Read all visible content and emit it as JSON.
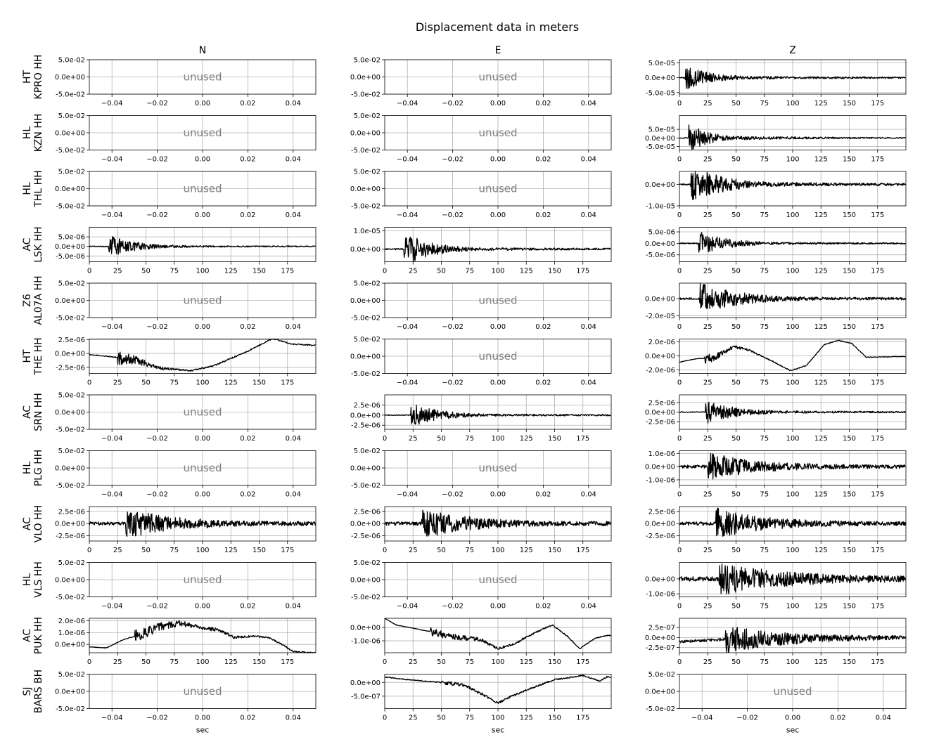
{
  "figure": {
    "title": "Displacement data in meters",
    "colors": {
      "trace": "#000000",
      "grid": "#b0b0b0",
      "unused_text": "#808080"
    }
  },
  "chart_data": {
    "type": "line",
    "title": "Displacement data in meters",
    "columns": [
      "N",
      "E",
      "Z"
    ],
    "xlabel": "sec",
    "unused_text": "unused",
    "grid": true,
    "rows": [
      {
        "label_line1": "HT",
        "label_line2": "KPRO HH",
        "panels": [
          {
            "unused": true
          },
          {
            "unused": true
          },
          {
            "unused": false,
            "onset": 5,
            "decay": 0.045,
            "noise": 0.05,
            "amp": 4e-05,
            "tail": 0.6,
            "ylim": [
              -5.5e-05,
              6e-05
            ],
            "yticks": [
              5e-05,
              0,
              -5e-05
            ],
            "yticklabels": [
              "5.0e-05",
              "0.0e+00",
              "-5.0e-05"
            ]
          }
        ]
      },
      {
        "label_line1": "HL",
        "label_line2": "KZN HH",
        "panels": [
          {
            "unused": true
          },
          {
            "unused": true
          },
          {
            "unused": false,
            "onset": 8,
            "decay": 0.06,
            "noise": 0.03,
            "amp": 9e-05,
            "tail": 0.7,
            "ylim": [
              -7e-05,
              0.00013
            ],
            "yticks": [
              5e-05,
              0,
              -5e-05
            ],
            "yticklabels": [
              "5.0e-05",
              "0.0e+00",
              "-5.0e-05"
            ]
          }
        ]
      },
      {
        "label_line1": "HL",
        "label_line2": "THL HH",
        "panels": [
          {
            "unused": true
          },
          {
            "unused": true
          },
          {
            "unused": false,
            "onset": 10,
            "decay": 0.035,
            "noise": 0.03,
            "amp": 9e-06,
            "tail": 0.6,
            "ylim": [
              -1e-05,
              6e-06
            ],
            "yticks": [
              0,
              -1e-05
            ],
            "yticklabels": [
              "0.0e+00",
              "-1.0e-05"
            ]
          }
        ]
      },
      {
        "label_line1": "AC",
        "label_line2": "LSK HH",
        "panels": [
          {
            "unused": false,
            "onset": 17,
            "decay": 0.045,
            "noise": 0.04,
            "amp": 6e-06,
            "tail": 0.35,
            "ylim": [
              -8e-06,
              1e-05
            ],
            "yticks": [
              5e-06,
              0,
              -5e-06
            ],
            "yticklabels": [
              "5.0e-06",
              "0.0e+00",
              "-5.0e-06"
            ]
          },
          {
            "unused": false,
            "onset": 17,
            "decay": 0.045,
            "noise": 0.04,
            "amp": 1e-05,
            "tail": 0.35,
            "ylim": [
              -7e-06,
              1.2e-05
            ],
            "yticks": [
              1e-05,
              0
            ],
            "yticklabels": [
              "1.0e-05",
              "0.0e+00"
            ]
          },
          {
            "unused": false,
            "onset": 17,
            "decay": 0.045,
            "noise": 0.04,
            "amp": 6e-06,
            "tail": 0.35,
            "ylim": [
              -8e-06,
              7e-06
            ],
            "yticks": [
              5e-06,
              0,
              -5e-06
            ],
            "yticklabels": [
              "5.0e-06",
              "0.0e+00",
              "-5.0e-06"
            ]
          }
        ]
      },
      {
        "label_line1": "Z6",
        "label_line2": "AL07A HH",
        "panels": [
          {
            "unused": true
          },
          {
            "unused": true
          },
          {
            "unused": false,
            "onset": 18,
            "decay": 0.03,
            "noise": 0.06,
            "amp": 1.8e-05,
            "tail": 0.3,
            "ylim": [
              -2.2e-05,
              1.8e-05
            ],
            "yticks": [
              0,
              -2e-05
            ],
            "yticklabels": [
              "0.0e+00",
              "-2.0e-05"
            ]
          }
        ]
      },
      {
        "label_line1": "HT",
        "label_line2": "THE HH",
        "panels": [
          {
            "unused": false,
            "onset": 25,
            "decay": 0.05,
            "noise": 0.05,
            "amp": 1.5e-06,
            "tail": 0.4,
            "drift": [
              [
                0,
                -2e-07
              ],
              [
                20,
                -6e-07
              ],
              [
                40,
                -1.1e-06
              ],
              [
                60,
                -2.6e-06
              ],
              [
                90,
                -3.1e-06
              ],
              [
                110,
                -2.2e-06
              ],
              [
                140,
                4e-07
              ],
              [
                162,
                2.7e-06
              ],
              [
                178,
                1.7e-06
              ],
              [
                196,
                1.5e-06
              ]
            ],
            "ylim": [
              -3.6e-06,
              2.6e-06
            ],
            "yticks": [
              2.5e-06,
              0,
              -2.5e-06
            ],
            "yticklabels": [
              "2.5e-06",
              "0.0e+00",
              "-2.5e-06"
            ]
          },
          {
            "unused": true
          },
          {
            "unused": false,
            "onset": 22,
            "decay": 0.05,
            "noise": 0.05,
            "amp": 7e-07,
            "tail": 0.4,
            "drift": [
              [
                0,
                -9e-07
              ],
              [
                15,
                -4e-07
              ],
              [
                30,
                -3e-07
              ],
              [
                48,
                1.3e-06
              ],
              [
                62,
                8e-07
              ],
              [
                80,
                -6e-07
              ],
              [
                98,
                -2.1e-06
              ],
              [
                112,
                -1.4e-06
              ],
              [
                128,
                1.6e-06
              ],
              [
                140,
                2.2e-06
              ],
              [
                152,
                1.8e-06
              ],
              [
                165,
                -2e-07
              ],
              [
                196,
                -1e-07
              ]
            ],
            "ylim": [
              -2.5e-06,
              2.4e-06
            ],
            "yticks": [
              2e-06,
              0,
              -2e-06
            ],
            "yticklabels": [
              "2.0e-06",
              "0.0e+00",
              "-2.0e-06"
            ]
          }
        ]
      },
      {
        "label_line1": "AC",
        "label_line2": "SRN HH",
        "panels": [
          {
            "unused": true
          },
          {
            "unused": false,
            "onset": 23,
            "decay": 0.04,
            "noise": 0.04,
            "amp": 3e-06,
            "tail": 0.5,
            "ylim": [
              -3.5e-06,
              5e-06
            ],
            "yticks": [
              2.5e-06,
              0,
              -2.5e-06
            ],
            "yticklabels": [
              "2.5e-06",
              "0.0e+00",
              "-2.5e-06"
            ]
          },
          {
            "unused": false,
            "onset": 23,
            "decay": 0.04,
            "noise": 0.04,
            "amp": 3.2e-06,
            "tail": 0.5,
            "ylim": [
              -4.5e-06,
              4.5e-06
            ],
            "yticks": [
              2.5e-06,
              0,
              -2.5e-06
            ],
            "yticklabels": [
              "2.5e-06",
              "0.0e+00",
              "-2.5e-06"
            ]
          }
        ]
      },
      {
        "label_line1": "HL",
        "label_line2": "PLG HH",
        "panels": [
          {
            "unused": true
          },
          {
            "unused": true
          },
          {
            "unused": false,
            "onset": 25,
            "decay": 0.025,
            "noise": 0.12,
            "amp": 1e-06,
            "tail": 0.25,
            "ylim": [
              -1.4e-06,
              1.2e-06
            ],
            "yticks": [
              1e-06,
              0,
              -1e-06
            ],
            "yticklabels": [
              "1.0e-06",
              "0.0e+00",
              "-1.0e-06"
            ]
          }
        ]
      },
      {
        "label_line1": "AC",
        "label_line2": "VLO HH",
        "panels": [
          {
            "unused": false,
            "onset": 32,
            "decay": 0.025,
            "noise": 0.12,
            "amp": 3e-06,
            "tail": 0.3,
            "ylim": [
              -3.6e-06,
              3.5e-06
            ],
            "yticks": [
              2.5e-06,
              0,
              -2.5e-06
            ],
            "yticklabels": [
              "2.5e-06",
              "0.0e+00",
              "-2.5e-06"
            ]
          },
          {
            "unused": false,
            "onset": 32,
            "decay": 0.025,
            "noise": 0.12,
            "amp": 3e-06,
            "tail": 0.3,
            "ylim": [
              -3.6e-06,
              3.5e-06
            ],
            "yticks": [
              2.5e-06,
              0,
              -2.5e-06
            ],
            "yticklabels": [
              "2.5e-06",
              "0.0e+00",
              "-2.5e-06"
            ]
          },
          {
            "unused": false,
            "onset": 32,
            "decay": 0.025,
            "noise": 0.12,
            "amp": 3e-06,
            "tail": 0.3,
            "ylim": [
              -3.6e-06,
              3.5e-06
            ],
            "yticks": [
              2.5e-06,
              0,
              -2.5e-06
            ],
            "yticklabels": [
              "2.5e-06",
              "0.0e+00",
              "-2.5e-06"
            ]
          }
        ]
      },
      {
        "label_line1": "HL",
        "label_line2": "VLS HH",
        "panels": [
          {
            "unused": true
          },
          {
            "unused": true
          },
          {
            "unused": false,
            "onset": 35,
            "decay": 0.018,
            "noise": 0.15,
            "amp": 1e-06,
            "tail": 0.3,
            "ylim": [
              -1.2e-06,
              1.1e-06
            ],
            "yticks": [
              0,
              -1e-06
            ],
            "yticklabels": [
              "0.0e+00",
              "-1.0e-06"
            ]
          }
        ]
      },
      {
        "label_line1": "AC",
        "label_line2": "PUK HH",
        "panels": [
          {
            "unused": false,
            "onset": 40,
            "decay": 0.02,
            "noise": 0.05,
            "amp": 5e-07,
            "tail": 0.4,
            "drift": [
              [
                0,
                -2e-07
              ],
              [
                15,
                -3e-07
              ],
              [
                30,
                4e-07
              ],
              [
                48,
                9e-07
              ],
              [
                62,
                1.5e-06
              ],
              [
                80,
                1.8e-06
              ],
              [
                100,
                1.4e-06
              ],
              [
                115,
                1.2e-06
              ],
              [
                128,
                6e-07
              ],
              [
                145,
                7e-07
              ],
              [
                158,
                6e-07
              ],
              [
                172,
                -1e-07
              ],
              [
                180,
                -6e-07
              ],
              [
                196,
                -7e-07
              ]
            ],
            "ylim": [
              -7e-07,
              2.2e-06
            ],
            "yticks": [
              2e-06,
              1e-06,
              0
            ],
            "yticklabels": [
              "2.0e-06",
              "1.0e-06",
              "0.0e+00"
            ]
          },
          {
            "unused": false,
            "onset": 40,
            "decay": 0.02,
            "noise": 0.06,
            "amp": 3e-07,
            "tail": 0.4,
            "drift": [
              [
                0,
                7e-07
              ],
              [
                10,
                2e-07
              ],
              [
                40,
                -3e-07
              ],
              [
                60,
                -7e-07
              ],
              [
                85,
                -9e-07
              ],
              [
                100,
                -1.6e-06
              ],
              [
                115,
                -1.2e-06
              ],
              [
                130,
                -5e-07
              ],
              [
                148,
                2e-07
              ],
              [
                162,
                -7e-07
              ],
              [
                172,
                -1.6e-06
              ],
              [
                186,
                -8e-07
              ],
              [
                196,
                -6e-07
              ]
            ],
            "ylim": [
              -1.9e-06,
              7e-07
            ],
            "yticks": [
              0,
              -1e-06
            ],
            "yticklabels": [
              "0.0e+00",
              "-1.0e-06"
            ]
          },
          {
            "unused": false,
            "onset": 40,
            "decay": 0.02,
            "noise": 0.1,
            "amp": 3.5e-07,
            "tail": 0.4,
            "drift": [
              [
                0,
                -1e-07
              ],
              [
                40,
                -5e-08
              ],
              [
                196,
                0
              ]
            ],
            "ylim": [
              -3.8e-07,
              4.8e-07
            ],
            "yticks": [
              2.5e-07,
              0,
              -2.5e-07
            ],
            "yticklabels": [
              "2.5e-07",
              "0.0e+00",
              "-2.5e-07"
            ]
          }
        ]
      },
      {
        "label_line1": "SJ",
        "label_line2": "BARS BH",
        "panels": [
          {
            "unused": true
          },
          {
            "unused": false,
            "onset": 50,
            "decay": 0.02,
            "noise": 0.3,
            "amp": 6e-08,
            "tail": 0.6,
            "drift": [
              [
                0,
                2e-07
              ],
              [
                20,
                1e-07
              ],
              [
                50,
                0
              ],
              [
                70,
                -1e-07
              ],
              [
                85,
                -4e-07
              ],
              [
                100,
                -7.5e-07
              ],
              [
                112,
                -5e-07
              ],
              [
                130,
                -2e-07
              ],
              [
                150,
                1e-07
              ],
              [
                175,
                2.5e-07
              ],
              [
                190,
                5e-08
              ],
              [
                196,
                2e-07
              ]
            ],
            "ylim": [
              -9.5e-07,
              3e-07
            ],
            "yticks": [
              0,
              -5e-07
            ],
            "yticklabels": [
              "0.0e+00",
              "-5.0e-07"
            ]
          },
          {
            "unused": true
          }
        ]
      }
    ],
    "unused_axis": {
      "xlim": [
        -0.05,
        0.05
      ],
      "xticks": [
        -0.04,
        -0.02,
        0,
        0.02,
        0.04
      ],
      "xticklabels": [
        "−0.04",
        "−0.02",
        "0.00",
        "0.02",
        "0.04"
      ],
      "ylim": [
        -0.05,
        0.05
      ],
      "yticks": [
        0.05,
        0,
        -0.05
      ],
      "yticklabels": [
        "5.0e-02",
        "0.0e+00",
        "-5.0e-02"
      ]
    },
    "data_axis": {
      "xlim": [
        0,
        200
      ],
      "xticks": [
        0,
        25,
        50,
        75,
        100,
        125,
        150,
        175
      ],
      "xticklabels": [
        "0",
        "25",
        "50",
        "75",
        "100",
        "125",
        "150",
        "175"
      ]
    }
  }
}
